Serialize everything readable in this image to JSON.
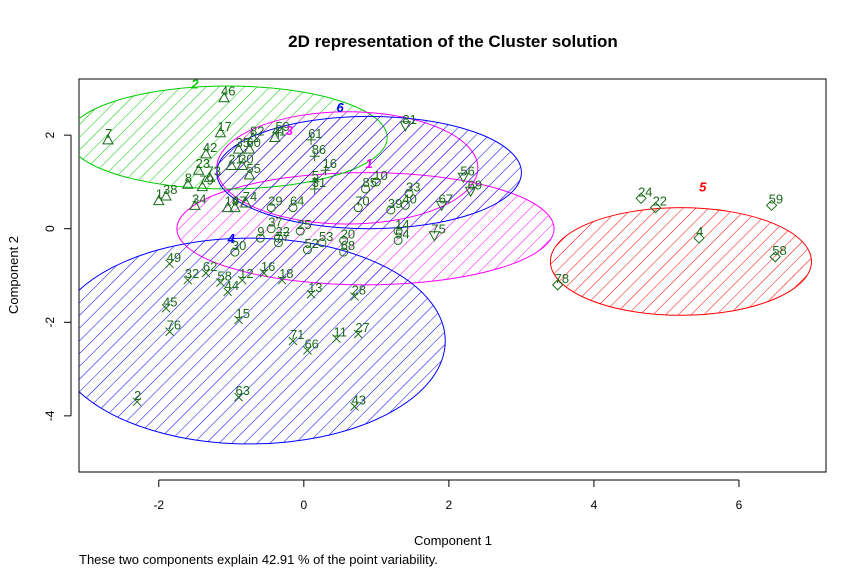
{
  "chart_data": {
    "type": "scatter",
    "title": "2D representation of the Cluster solution",
    "xlabel": "Component 1",
    "ylabel": "Component 2",
    "subtitle": "These two components explain 42.91 % of the point variability.",
    "xlim": [
      -3.1,
      7.2
    ],
    "ylim": [
      -5.2,
      3.2
    ],
    "xticks": [
      -2,
      0,
      2,
      4,
      6
    ],
    "yticks": [
      -4,
      -2,
      0,
      2
    ],
    "clusters": [
      {
        "id": "1",
        "color": "#ff00ff",
        "symbol": "circle",
        "center": [
          0.85,
          0.0
        ],
        "rx": 2.6,
        "ry": 1.2,
        "label": [
          0.9,
          1.3
        ]
      },
      {
        "id": "2",
        "color": "#00cc00",
        "symbol": "triangle",
        "center": [
          -1.05,
          1.95
        ],
        "rx": 2.2,
        "ry": 1.1,
        "label": [
          -1.5,
          3.0
        ]
      },
      {
        "id": "3",
        "color": "#ff00ff",
        "symbol": "plus",
        "center": [
          0.6,
          1.3
        ],
        "rx": 1.8,
        "ry": 1.2,
        "label": [
          -0.2,
          2.0
        ]
      },
      {
        "id": "4",
        "color": "#0000ff",
        "symbol": "x",
        "center": [
          -0.75,
          -2.4
        ],
        "rx": 2.7,
        "ry": 2.2,
        "label": [
          -1.0,
          -0.3
        ]
      },
      {
        "id": "5",
        "color": "#ff0000",
        "symbol": "diamond",
        "center": [
          5.2,
          -0.7
        ],
        "rx": 1.8,
        "ry": 1.15,
        "label": [
          5.5,
          0.8
        ]
      },
      {
        "id": "6",
        "color": "#0000ff",
        "symbol": "triangle-down",
        "center": [
          0.9,
          1.2
        ],
        "rx": 2.1,
        "ry": 1.2,
        "label": [
          0.5,
          2.5
        ]
      }
    ],
    "points": [
      {
        "id": "7",
        "c": "2",
        "x": -2.7,
        "y": 1.9
      },
      {
        "id": "46",
        "c": "2",
        "x": -1.1,
        "y": 2.8
      },
      {
        "id": "17",
        "c": "2",
        "x": -1.15,
        "y": 2.05
      },
      {
        "id": "42",
        "c": "2",
        "x": -1.35,
        "y": 1.6
      },
      {
        "id": "23",
        "c": "2",
        "x": -1.45,
        "y": 1.25
      },
      {
        "id": "73",
        "c": "2",
        "x": -1.3,
        "y": 1.1
      },
      {
        "id": "8",
        "c": "2",
        "x": -1.6,
        "y": 0.95
      },
      {
        "id": "79",
        "c": "2",
        "x": -1.4,
        "y": 0.9
      },
      {
        "id": "38",
        "c": "2",
        "x": -1.9,
        "y": 0.7
      },
      {
        "id": "1",
        "c": "2",
        "x": -2.0,
        "y": 0.6
      },
      {
        "id": "34",
        "c": "2",
        "x": -1.5,
        "y": 0.5
      },
      {
        "id": "82",
        "c": "2",
        "x": -0.7,
        "y": 1.95
      },
      {
        "id": "41",
        "c": "2",
        "x": -0.4,
        "y": 1.95
      },
      {
        "id": "35",
        "c": "2",
        "x": -0.9,
        "y": 1.7
      },
      {
        "id": "60",
        "c": "2",
        "x": -0.75,
        "y": 1.7
      },
      {
        "id": "21",
        "c": "2",
        "x": -1.0,
        "y": 1.35
      },
      {
        "id": "30",
        "c": "2",
        "x": -0.85,
        "y": 1.35
      },
      {
        "id": "55",
        "c": "2",
        "x": -0.75,
        "y": 1.15
      },
      {
        "id": "19",
        "c": "2",
        "x": -1.05,
        "y": 0.45
      },
      {
        "id": "47",
        "c": "2",
        "x": -0.95,
        "y": 0.45
      },
      {
        "id": "74",
        "c": "2",
        "x": -0.8,
        "y": 0.55
      },
      {
        "id": "81",
        "c": "6",
        "x": 1.4,
        "y": 2.2
      },
      {
        "id": "56",
        "c": "6",
        "x": 2.2,
        "y": 1.1
      },
      {
        "id": "69",
        "c": "6",
        "x": 2.3,
        "y": 0.8
      },
      {
        "id": "67",
        "c": "6",
        "x": 1.9,
        "y": 0.5
      },
      {
        "id": "75",
        "c": "6",
        "x": 1.8,
        "y": -0.15
      },
      {
        "id": "61",
        "c": "3",
        "x": 0.1,
        "y": 1.9
      },
      {
        "id": "86",
        "c": "3",
        "x": 0.15,
        "y": 1.55
      },
      {
        "id": "16",
        "c": "3",
        "x": 0.3,
        "y": 1.25
      },
      {
        "id": "5",
        "c": "3",
        "x": 0.15,
        "y": 1.0
      },
      {
        "id": "31",
        "c": "3",
        "x": 0.15,
        "y": 0.85
      },
      {
        "id": "59",
        "c": "3",
        "x": -0.35,
        "y": 2.05
      },
      {
        "id": "10",
        "c": "1",
        "x": 1.0,
        "y": 1.0
      },
      {
        "id": "85",
        "c": "1",
        "x": 0.85,
        "y": 0.85
      },
      {
        "id": "33",
        "c": "1",
        "x": 1.45,
        "y": 0.75
      },
      {
        "id": "70",
        "c": "1",
        "x": 0.75,
        "y": 0.45
      },
      {
        "id": "29",
        "c": "1",
        "x": -0.45,
        "y": 0.45
      },
      {
        "id": "64",
        "c": "1",
        "x": -0.15,
        "y": 0.45
      },
      {
        "id": "39",
        "c": "1",
        "x": 1.2,
        "y": 0.4
      },
      {
        "id": "40",
        "c": "1",
        "x": 1.4,
        "y": 0.5
      },
      {
        "id": "77",
        "c": "1",
        "x": -0.35,
        "y": -0.3
      },
      {
        "id": "37",
        "c": "1",
        "x": -0.45,
        "y": 0.0
      },
      {
        "id": "25",
        "c": "1",
        "x": -0.05,
        "y": -0.05
      },
      {
        "id": "9",
        "c": "1",
        "x": -0.6,
        "y": -0.2
      },
      {
        "id": "22",
        "c": "1",
        "x": -0.35,
        "y": -0.2
      },
      {
        "id": "52",
        "c": "1",
        "x": 0.05,
        "y": -0.45
      },
      {
        "id": "53",
        "c": "1",
        "x": 0.25,
        "y": -0.3
      },
      {
        "id": "20",
        "c": "1",
        "x": 0.55,
        "y": -0.25
      },
      {
        "id": "68",
        "c": "1",
        "x": 0.55,
        "y": -0.5
      },
      {
        "id": "14",
        "c": "1",
        "x": 1.3,
        "y": -0.05
      },
      {
        "id": "54",
        "c": "1",
        "x": 1.3,
        "y": -0.25
      },
      {
        "id": "30",
        "c": "1",
        "x": -0.95,
        "y": -0.5
      },
      {
        "id": "24",
        "c": "5",
        "x": 4.65,
        "y": 0.65
      },
      {
        "id": "22",
        "c": "5",
        "x": 4.85,
        "y": 0.45
      },
      {
        "id": "4",
        "c": "5",
        "x": 5.45,
        "y": -0.2
      },
      {
        "id": "59",
        "c": "5",
        "x": 6.45,
        "y": 0.5
      },
      {
        "id": "58",
        "c": "5",
        "x": 6.5,
        "y": -0.6
      },
      {
        "id": "78",
        "c": "5",
        "x": 3.5,
        "y": -1.2
      },
      {
        "id": "49",
        "c": "4",
        "x": -1.85,
        "y": -0.75
      },
      {
        "id": "62",
        "c": "4",
        "x": -1.35,
        "y": -0.95
      },
      {
        "id": "32",
        "c": "4",
        "x": -1.6,
        "y": -1.1
      },
      {
        "id": "58",
        "c": "4",
        "x": -1.15,
        "y": -1.15
      },
      {
        "id": "12",
        "c": "4",
        "x": -0.85,
        "y": -1.1
      },
      {
        "id": "16",
        "c": "4",
        "x": -0.55,
        "y": -0.95
      },
      {
        "id": "18",
        "c": "4",
        "x": -0.3,
        "y": -1.1
      },
      {
        "id": "44",
        "c": "4",
        "x": -1.05,
        "y": -1.35
      },
      {
        "id": "13",
        "c": "4",
        "x": 0.1,
        "y": -1.4
      },
      {
        "id": "28",
        "c": "4",
        "x": 0.7,
        "y": -1.45
      },
      {
        "id": "45",
        "c": "4",
        "x": -1.9,
        "y": -1.7
      },
      {
        "id": "15",
        "c": "4",
        "x": -0.9,
        "y": -1.95
      },
      {
        "id": "76",
        "c": "4",
        "x": -1.85,
        "y": -2.2
      },
      {
        "id": "71",
        "c": "4",
        "x": -0.15,
        "y": -2.4
      },
      {
        "id": "11",
        "c": "4",
        "x": 0.45,
        "y": -2.35
      },
      {
        "id": "27",
        "c": "4",
        "x": 0.75,
        "y": -2.25
      },
      {
        "id": "66",
        "c": "4",
        "x": 0.05,
        "y": -2.6
      },
      {
        "id": "2",
        "c": "4",
        "x": -2.3,
        "y": -3.7
      },
      {
        "id": "63",
        "c": "4",
        "x": -0.9,
        "y": -3.6
      },
      {
        "id": "43",
        "c": "4",
        "x": 0.7,
        "y": -3.8
      }
    ]
  }
}
